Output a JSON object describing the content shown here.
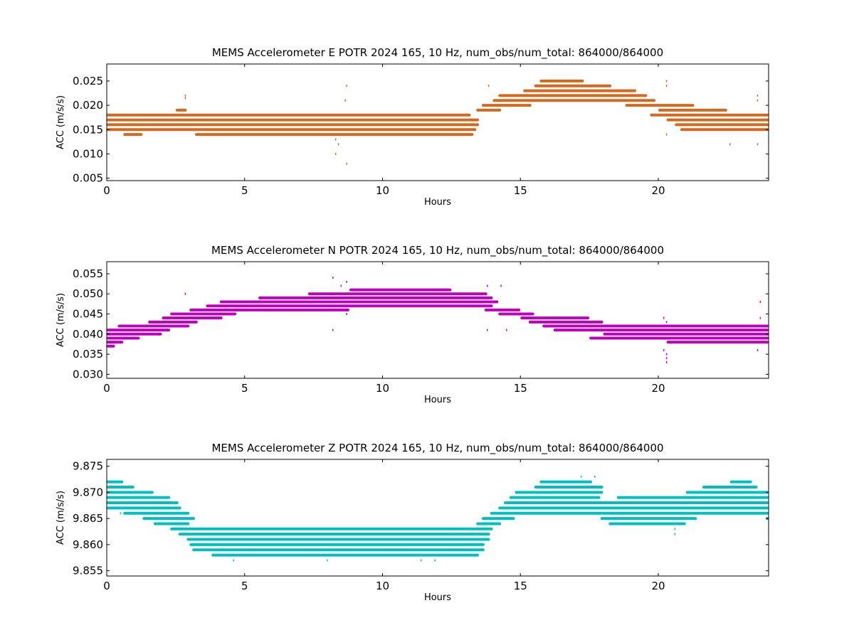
{
  "chart_data": [
    {
      "type": "scatter",
      "title": "MEMS Accelerometer E POTR 2024 165, 10 Hz, num_obs/num_total: 864000/864000",
      "xlabel": "Hours",
      "ylabel": "ACC (m/s/s)",
      "xlim": [
        0,
        24
      ],
      "ylim": [
        0.0045,
        0.0285
      ],
      "xticks": [
        0,
        5,
        10,
        15,
        20
      ],
      "yticks": [
        0.005,
        0.01,
        0.015,
        0.02,
        0.025
      ],
      "ytick_labels": [
        "0.005",
        "0.010",
        "0.015",
        "0.020",
        "0.025"
      ],
      "grid": false,
      "color": "#d2691e",
      "series": [
        {
          "y": 0.014,
          "x": [
            [
              0.6,
              1.3
            ],
            [
              3.2,
              13.3
            ]
          ]
        },
        {
          "y": 0.015,
          "x": [
            [
              0.0,
              13.4
            ],
            [
              20.8,
              24.0
            ]
          ]
        },
        {
          "y": 0.016,
          "x": [
            [
              0.0,
              13.5
            ],
            [
              20.6,
              24.0
            ]
          ]
        },
        {
          "y": 0.017,
          "x": [
            [
              0.0,
              13.5
            ],
            [
              20.3,
              24.0
            ]
          ]
        },
        {
          "y": 0.018,
          "x": [
            [
              0.0,
              13.2
            ],
            [
              19.7,
              24.0
            ]
          ]
        },
        {
          "y": 0.019,
          "x": [
            [
              2.5,
              2.9
            ],
            [
              13.4,
              14.3
            ],
            [
              20.0,
              22.5
            ]
          ]
        },
        {
          "y": 0.02,
          "x": [
            [
              13.6,
              15.4
            ],
            [
              18.8,
              21.3
            ]
          ]
        },
        {
          "y": 0.021,
          "x": [
            [
              14.0,
              19.9
            ]
          ]
        },
        {
          "y": 0.022,
          "x": [
            [
              14.2,
              19.6
            ]
          ]
        },
        {
          "y": 0.023,
          "x": [
            [
              15.1,
              19.2
            ]
          ]
        },
        {
          "y": 0.024,
          "x": [
            [
              15.5,
              18.3
            ]
          ]
        },
        {
          "y": 0.025,
          "x": [
            [
              15.7,
              17.3
            ]
          ]
        }
      ],
      "outliers": [
        {
          "x": 2.85,
          "y": 0.022
        },
        {
          "x": 2.85,
          "y": 0.0215
        },
        {
          "x": 8.7,
          "y": 0.024
        },
        {
          "x": 8.65,
          "y": 0.021
        },
        {
          "x": 8.3,
          "y": 0.013
        },
        {
          "x": 8.4,
          "y": 0.012
        },
        {
          "x": 8.3,
          "y": 0.01
        },
        {
          "x": 8.7,
          "y": 0.008
        },
        {
          "x": 13.85,
          "y": 0.024
        },
        {
          "x": 20.3,
          "y": 0.025
        },
        {
          "x": 20.3,
          "y": 0.024
        },
        {
          "x": 20.3,
          "y": 0.014
        },
        {
          "x": 23.6,
          "y": 0.022
        },
        {
          "x": 23.6,
          "y": 0.021
        },
        {
          "x": 23.6,
          "y": 0.012
        },
        {
          "x": 22.6,
          "y": 0.012
        }
      ]
    },
    {
      "type": "scatter",
      "title": "MEMS Accelerometer N POTR 2024 165, 10 Hz, num_obs/num_total: 864000/864000",
      "xlabel": "Hours",
      "ylabel": "ACC (m/s/s)",
      "xlim": [
        0,
        24
      ],
      "ylim": [
        0.029,
        0.058
      ],
      "xticks": [
        0,
        5,
        10,
        15,
        20
      ],
      "yticks": [
        0.03,
        0.035,
        0.04,
        0.045,
        0.05,
        0.055
      ],
      "ytick_labels": [
        "0.030",
        "0.035",
        "0.040",
        "0.045",
        "0.050",
        "0.055"
      ],
      "grid": false,
      "color": "#bf00bf",
      "series": [
        {
          "y": 0.037,
          "x": [
            [
              0.0,
              0.3
            ]
          ]
        },
        {
          "y": 0.038,
          "x": [
            [
              0.0,
              0.6
            ],
            [
              20.3,
              24.0
            ]
          ]
        },
        {
          "y": 0.039,
          "x": [
            [
              0.0,
              1.2
            ],
            [
              17.5,
              24.0
            ]
          ]
        },
        {
          "y": 0.04,
          "x": [
            [
              0.0,
              2.0
            ],
            [
              18.0,
              24.0
            ]
          ]
        },
        {
          "y": 0.041,
          "x": [
            [
              0.0,
              2.3
            ],
            [
              16.2,
              24.0
            ]
          ]
        },
        {
          "y": 0.042,
          "x": [
            [
              0.4,
              3.0
            ],
            [
              15.8,
              24.0
            ]
          ]
        },
        {
          "y": 0.043,
          "x": [
            [
              1.5,
              3.3
            ],
            [
              15.3,
              18.0
            ]
          ]
        },
        {
          "y": 0.044,
          "x": [
            [
              2.0,
              4.2
            ],
            [
              15.0,
              17.5
            ]
          ]
        },
        {
          "y": 0.045,
          "x": [
            [
              2.3,
              4.7
            ],
            [
              14.2,
              15.5
            ]
          ]
        },
        {
          "y": 0.046,
          "x": [
            [
              3.0,
              8.8
            ],
            [
              13.7,
              15.0
            ]
          ]
        },
        {
          "y": 0.047,
          "x": [
            [
              3.6,
              14.0
            ]
          ]
        },
        {
          "y": 0.048,
          "x": [
            [
              4.1,
              14.2
            ]
          ]
        },
        {
          "y": 0.049,
          "x": [
            [
              5.5,
              14.0
            ]
          ]
        },
        {
          "y": 0.05,
          "x": [
            [
              7.3,
              13.8
            ]
          ]
        },
        {
          "y": 0.051,
          "x": [
            [
              8.8,
              12.5
            ]
          ]
        }
      ],
      "outliers": [
        {
          "x": 2.85,
          "y": 0.05
        },
        {
          "x": 8.2,
          "y": 0.054
        },
        {
          "x": 8.7,
          "y": 0.053
        },
        {
          "x": 8.5,
          "y": 0.052
        },
        {
          "x": 8.2,
          "y": 0.041
        },
        {
          "x": 8.7,
          "y": 0.045
        },
        {
          "x": 13.8,
          "y": 0.052
        },
        {
          "x": 14.3,
          "y": 0.052
        },
        {
          "x": 13.8,
          "y": 0.041
        },
        {
          "x": 14.5,
          "y": 0.041
        },
        {
          "x": 20.2,
          "y": 0.044
        },
        {
          "x": 20.3,
          "y": 0.043
        },
        {
          "x": 20.2,
          "y": 0.036
        },
        {
          "x": 20.3,
          "y": 0.035
        },
        {
          "x": 20.3,
          "y": 0.034
        },
        {
          "x": 20.3,
          "y": 0.033
        },
        {
          "x": 23.7,
          "y": 0.048
        },
        {
          "x": 23.7,
          "y": 0.044
        },
        {
          "x": 23.6,
          "y": 0.036
        }
      ]
    },
    {
      "type": "scatter",
      "title": "MEMS Accelerometer Z POTR 2024 165, 10 Hz, num_obs/num_total: 864000/864000",
      "xlabel": "Hours",
      "ylabel": "ACC (m/s/s)",
      "xlim": [
        0,
        24
      ],
      "ylim": [
        9.854,
        9.8763
      ],
      "xticks": [
        0,
        5,
        10,
        15,
        20
      ],
      "yticks": [
        9.855,
        9.86,
        9.865,
        9.87,
        9.875
      ],
      "ytick_labels": [
        "9.855",
        "9.860",
        "9.865",
        "9.870",
        "9.875"
      ],
      "grid": false,
      "color": "#00bfbf",
      "series": [
        {
          "y": 9.858,
          "x": [
            [
              3.8,
              13.5
            ]
          ]
        },
        {
          "y": 9.859,
          "x": [
            [
              3.1,
              13.7
            ]
          ]
        },
        {
          "y": 9.86,
          "x": [
            [
              3.0,
              13.7
            ]
          ]
        },
        {
          "y": 9.861,
          "x": [
            [
              2.9,
              13.9
            ]
          ]
        },
        {
          "y": 9.862,
          "x": [
            [
              2.6,
              13.9
            ]
          ]
        },
        {
          "y": 9.863,
          "x": [
            [
              2.3,
              14.0
            ]
          ]
        },
        {
          "y": 9.864,
          "x": [
            [
              1.7,
              3.0
            ],
            [
              13.4,
              14.3
            ],
            [
              18.2,
              21.0
            ]
          ]
        },
        {
          "y": 9.865,
          "x": [
            [
              1.3,
              3.2
            ],
            [
              13.6,
              14.8
            ],
            [
              17.9,
              21.4
            ],
            [
              23.9,
              24.0
            ]
          ]
        },
        {
          "y": 9.866,
          "x": [
            [
              0.6,
              3.0
            ],
            [
              13.9,
              24.0
            ]
          ]
        },
        {
          "y": 9.867,
          "x": [
            [
              0.0,
              2.7
            ],
            [
              14.2,
              24.0
            ]
          ]
        },
        {
          "y": 9.868,
          "x": [
            [
              0.0,
              2.6
            ],
            [
              14.4,
              24.0
            ]
          ]
        },
        {
          "y": 9.869,
          "x": [
            [
              0.0,
              2.3
            ],
            [
              14.6,
              17.9
            ],
            [
              18.5,
              24.0
            ]
          ]
        },
        {
          "y": 9.87,
          "x": [
            [
              0.0,
              1.7
            ],
            [
              14.8,
              18.0
            ],
            [
              21.0,
              24.0
            ]
          ]
        },
        {
          "y": 9.871,
          "x": [
            [
              0.0,
              1.0
            ],
            [
              15.5,
              18.0
            ],
            [
              21.6,
              23.6
            ]
          ]
        },
        {
          "y": 9.872,
          "x": [
            [
              0.0,
              0.6
            ],
            [
              15.7,
              17.6
            ],
            [
              22.6,
              23.4
            ]
          ]
        }
      ],
      "outliers": [
        {
          "x": 17.2,
          "y": 9.873
        },
        {
          "x": 17.7,
          "y": 9.873
        },
        {
          "x": 23.7,
          "y": 9.87
        },
        {
          "x": 4.6,
          "y": 9.857
        },
        {
          "x": 8.0,
          "y": 9.857
        },
        {
          "x": 11.4,
          "y": 9.857
        },
        {
          "x": 11.9,
          "y": 9.857
        },
        {
          "x": 5.6,
          "y": 9.863
        },
        {
          "x": 6.0,
          "y": 9.863
        },
        {
          "x": 7.6,
          "y": 9.863
        },
        {
          "x": 20.6,
          "y": 9.863
        },
        {
          "x": 20.6,
          "y": 9.862
        },
        {
          "x": 0.5,
          "y": 9.866
        }
      ]
    }
  ]
}
